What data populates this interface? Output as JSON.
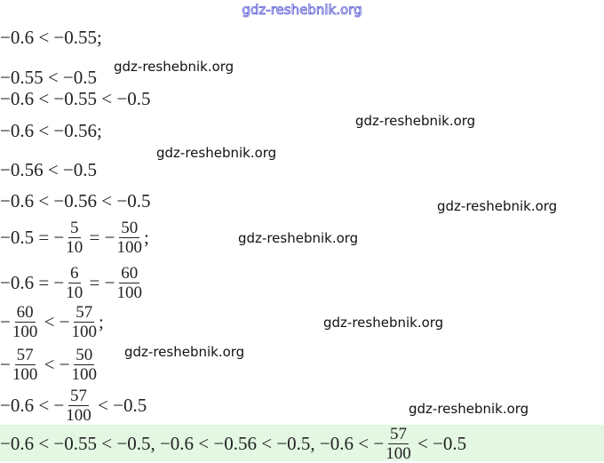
{
  "header": {
    "site": "gdz-reshebnik.org"
  },
  "lines": [
    {
      "parts": [
        "−0.6 < −0.55;"
      ]
    },
    {
      "parts": [
        "−0.55 < −0.5"
      ]
    },
    {
      "parts": [
        "−0.6 < −0.55 < −0.5"
      ]
    },
    {
      "parts": [
        "−0.6 < −0.56;"
      ]
    },
    {
      "parts": [
        "−0.56 < −0.5"
      ]
    },
    {
      "parts": [
        "−0.6 < −0.56 < −0.5"
      ]
    },
    {
      "parts": [
        "−0.5 = −",
        {
          "num": "5",
          "den": "10"
        },
        " = −",
        {
          "num": "50",
          "den": "100"
        },
        ";"
      ]
    },
    {
      "parts": [
        "−0.6 = −",
        {
          "num": "6",
          "den": "10"
        },
        " = −",
        {
          "num": "60",
          "den": "100"
        }
      ]
    },
    {
      "parts": [
        "−",
        {
          "num": "60",
          "den": "100"
        },
        " < −",
        {
          "num": "57",
          "den": "100"
        },
        ";"
      ]
    },
    {
      "parts": [
        "−",
        {
          "num": "57",
          "den": "100"
        },
        " < −",
        {
          "num": "50",
          "den": "100"
        }
      ]
    },
    {
      "parts": [
        "−0.6 < −",
        {
          "num": "57",
          "den": "100"
        },
        " < −0.5"
      ]
    }
  ],
  "answer": {
    "parts": [
      "−0.6 < −0.55 < −0.5, −0.6 < −0.56 < −0.5, −0.6 < −",
      {
        "num": "57",
        "den": "100"
      },
      " < −0.5"
    ]
  },
  "watermarks": [
    "gdz-reshebnik.org",
    "gdz-reshebnik.org",
    "gdz-reshebnik.org",
    "gdz-reshebnik.org",
    "gdz-reshebnik.org",
    "gdz-reshebnik.org",
    "gdz-reshebnik.org",
    "gdz-reshebnik.org"
  ]
}
